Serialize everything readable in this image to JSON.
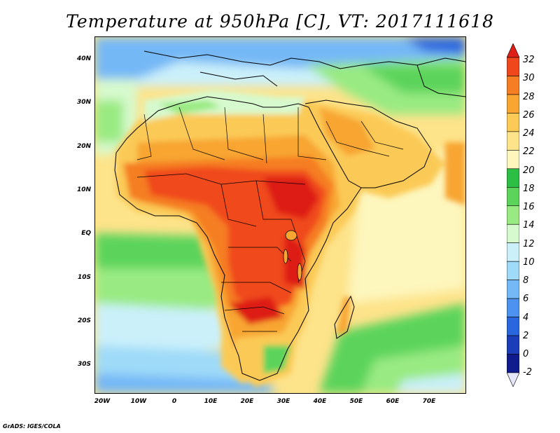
{
  "title": "Temperature at 950hPa [C], VT: 2017111618",
  "map": {
    "lat_labels": [
      "40N",
      "30N",
      "20N",
      "10N",
      "EQ",
      "10S",
      "20S",
      "30S"
    ],
    "lon_labels": [
      "20W",
      "10W",
      "0",
      "10E",
      "20E",
      "30E",
      "40E",
      "50E",
      "60E",
      "70E"
    ],
    "lat_range": [
      -36,
      45
    ],
    "lon_range": [
      -22,
      79
    ]
  },
  "colorbar": {
    "unit": "C",
    "labels": [
      "32",
      "30",
      "28",
      "26",
      "24",
      "22",
      "20",
      "18",
      "16",
      "14",
      "12",
      "10",
      "8",
      "6",
      "4",
      "2",
      "0",
      "-2"
    ],
    "colors": [
      "#de1f16",
      "#f0481c",
      "#f57d23",
      "#f8a532",
      "#fbca57",
      "#fde38a",
      "#fdf6bd",
      "#2dbf45",
      "#5cd45c",
      "#99ea82",
      "#d7f9ce",
      "#cbf0fa",
      "#9fdaf8",
      "#75b8f6",
      "#4c92ee",
      "#2a67de",
      "#1b3dba",
      "#101b8e",
      "#0b0e60"
    ]
  },
  "footer": "GrADS: IGES/COLA"
}
